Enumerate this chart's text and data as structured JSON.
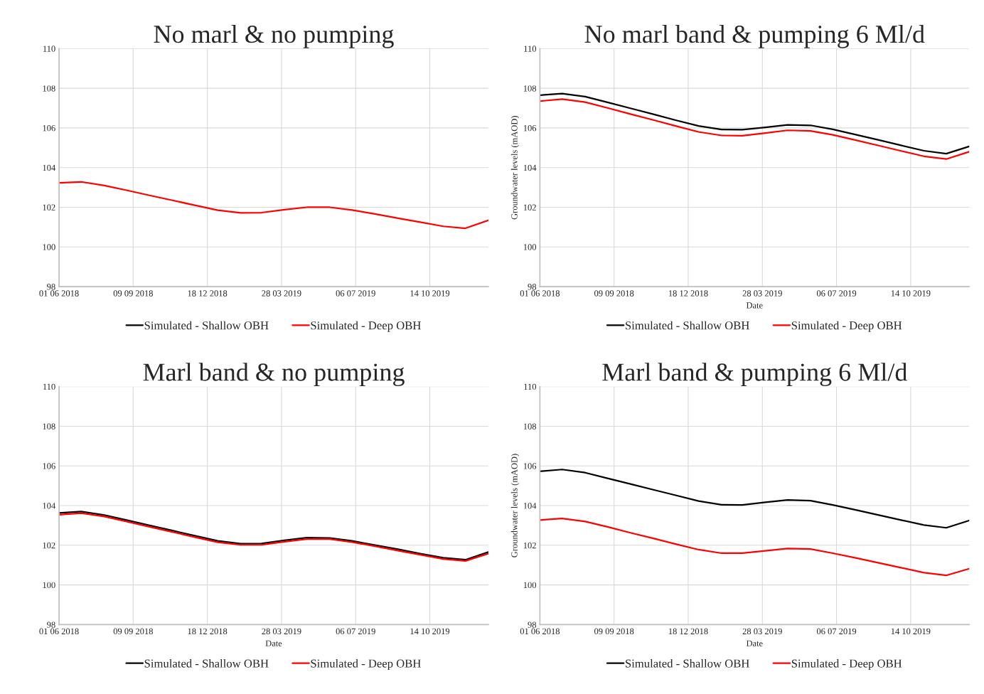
{
  "chart_data": [
    {
      "type": "line",
      "title": "No marl & no pumping",
      "x": [
        "2018-06-01",
        "2018-07-01",
        "2018-08-01",
        "2018-09-01",
        "2018-10-01",
        "2018-11-01",
        "2018-12-01",
        "2019-01-01",
        "2019-02-01",
        "2019-03-01",
        "2019-04-01",
        "2019-05-01",
        "2019-06-01",
        "2019-07-01",
        "2019-08-01",
        "2019-09-01",
        "2019-10-01",
        "2019-11-01",
        "2019-12-01",
        "2020-01-01"
      ],
      "series": [
        {
          "name": "Simulated - Shallow OBH",
          "color": "#000000",
          "values": [
            null,
            null,
            null,
            null,
            null,
            null,
            null,
            null,
            null,
            null,
            null,
            null,
            null,
            null,
            null,
            null,
            null,
            null,
            null,
            null
          ]
        },
        {
          "name": "Simulated - Deep OBH",
          "color": "#ff0000",
          "values": [
            103.23,
            103.28,
            103.1,
            102.85,
            102.6,
            102.35,
            102.1,
            101.85,
            101.72,
            101.73,
            101.88,
            102.0,
            102.0,
            101.86,
            101.66,
            101.45,
            101.25,
            101.04,
            100.94,
            101.34
          ]
        }
      ],
      "xlim": [
        "2018-06-01",
        "2020-01-01"
      ],
      "xticks": [
        {
          "value": "2018-06-01",
          "label": "01 06 2018"
        },
        {
          "value": "2018-09-09",
          "label": "09 09 2018"
        },
        {
          "value": "2018-12-18",
          "label": "18 12 2018"
        },
        {
          "value": "2019-03-28",
          "label": "28 03 2019"
        },
        {
          "value": "2019-07-06",
          "label": "06 07 2019"
        },
        {
          "value": "2019-10-14",
          "label": "14 10 2019"
        }
      ],
      "ylim": [
        98,
        110
      ],
      "yticks": [
        98,
        100,
        102,
        104,
        106,
        108,
        110
      ],
      "grid": true,
      "legend": "bottom"
    },
    {
      "type": "line",
      "title": "No marl band & pumping 6 Ml/d",
      "xlabel": "Date",
      "ylabel": "Groundwater levels (mAOD)",
      "x": [
        "2018-06-01",
        "2018-07-01",
        "2018-08-01",
        "2018-09-01",
        "2018-10-01",
        "2018-11-01",
        "2018-12-01",
        "2019-01-01",
        "2019-02-01",
        "2019-03-01",
        "2019-04-01",
        "2019-05-01",
        "2019-06-01",
        "2019-07-01",
        "2019-08-01",
        "2019-09-01",
        "2019-10-01",
        "2019-11-01",
        "2019-12-01",
        "2020-01-01"
      ],
      "series": [
        {
          "name": "Simulated - Shallow OBH",
          "color": "#000000",
          "values": [
            107.65,
            107.73,
            107.58,
            107.28,
            106.99,
            106.69,
            106.39,
            106.1,
            105.92,
            105.91,
            106.03,
            106.15,
            106.13,
            105.93,
            105.66,
            105.39,
            105.12,
            104.85,
            104.7,
            105.07
          ]
        },
        {
          "name": "Simulated - Deep OBH",
          "color": "#ff0000",
          "values": [
            107.35,
            107.45,
            107.3,
            107.0,
            106.7,
            106.4,
            106.1,
            105.8,
            105.62,
            105.61,
            105.74,
            105.88,
            105.85,
            105.65,
            105.38,
            105.11,
            104.84,
            104.57,
            104.43,
            104.8
          ]
        }
      ],
      "xlim": [
        "2018-06-01",
        "2020-01-01"
      ],
      "xticks": [
        {
          "value": "2018-06-01",
          "label": "01 06 2018"
        },
        {
          "value": "2018-09-09",
          "label": "09 09 2018"
        },
        {
          "value": "2018-12-18",
          "label": "18 12 2018"
        },
        {
          "value": "2019-03-28",
          "label": "28 03 2019"
        },
        {
          "value": "2019-07-06",
          "label": "06 07 2019"
        },
        {
          "value": "2019-10-14",
          "label": "14 10 2019"
        }
      ],
      "ylim": [
        98,
        110
      ],
      "yticks": [
        98,
        100,
        102,
        104,
        106,
        108,
        110
      ],
      "grid": true,
      "legend": "bottom"
    },
    {
      "type": "line",
      "title": "Marl band & no pumping",
      "xlabel": "Date",
      "x": [
        "2018-06-01",
        "2018-07-01",
        "2018-08-01",
        "2018-09-01",
        "2018-10-01",
        "2018-11-01",
        "2018-12-01",
        "2019-01-01",
        "2019-02-01",
        "2019-03-01",
        "2019-04-01",
        "2019-05-01",
        "2019-06-01",
        "2019-07-01",
        "2019-08-01",
        "2019-09-01",
        "2019-10-01",
        "2019-11-01",
        "2019-12-01",
        "2020-01-01"
      ],
      "series": [
        {
          "name": "Simulated - Shallow OBH",
          "color": "#000000",
          "values": [
            103.63,
            103.7,
            103.52,
            103.26,
            103.0,
            102.74,
            102.48,
            102.22,
            102.08,
            102.09,
            102.25,
            102.38,
            102.37,
            102.22,
            102.01,
            101.8,
            101.58,
            101.37,
            101.27,
            101.66
          ]
        },
        {
          "name": "Simulated - Deep OBH",
          "color": "#ff0000",
          "values": [
            103.54,
            103.62,
            103.45,
            103.19,
            102.93,
            102.67,
            102.41,
            102.15,
            102.02,
            102.02,
            102.18,
            102.31,
            102.31,
            102.16,
            101.95,
            101.73,
            101.52,
            101.31,
            101.21,
            101.58
          ]
        }
      ],
      "xlim": [
        "2018-06-01",
        "2020-01-01"
      ],
      "xticks": [
        {
          "value": "2018-06-01",
          "label": "01 06 2018"
        },
        {
          "value": "2018-09-09",
          "label": "09 09 2018"
        },
        {
          "value": "2018-12-18",
          "label": "18 12 2018"
        },
        {
          "value": "2019-03-28",
          "label": "28 03 2019"
        },
        {
          "value": "2019-07-06",
          "label": "06 07 2019"
        },
        {
          "value": "2019-10-14",
          "label": "14 10 2019"
        }
      ],
      "ylim": [
        98,
        110
      ],
      "yticks": [
        98,
        100,
        102,
        104,
        106,
        108,
        110
      ],
      "grid": true,
      "legend": "bottom"
    },
    {
      "type": "line",
      "title": "Marl band & pumping 6 Ml/d",
      "xlabel": "Date",
      "ylabel": "Groundwater levels (mAOD)",
      "x": [
        "2018-06-01",
        "2018-07-01",
        "2018-08-01",
        "2018-09-01",
        "2018-10-01",
        "2018-11-01",
        "2018-12-01",
        "2019-01-01",
        "2019-02-01",
        "2019-03-01",
        "2019-04-01",
        "2019-05-01",
        "2019-06-01",
        "2019-07-01",
        "2019-08-01",
        "2019-09-01",
        "2019-10-01",
        "2019-11-01",
        "2019-12-01",
        "2020-01-01"
      ],
      "series": [
        {
          "name": "Simulated - Shallow OBH",
          "color": "#000000",
          "values": [
            105.73,
            105.82,
            105.66,
            105.37,
            105.09,
            104.8,
            104.52,
            104.23,
            104.04,
            104.03,
            104.17,
            104.28,
            104.25,
            104.03,
            103.78,
            103.52,
            103.27,
            103.02,
            102.88,
            103.25
          ]
        },
        {
          "name": "Simulated - Deep OBH",
          "color": "#ff0000",
          "values": [
            103.27,
            103.35,
            103.2,
            102.92,
            102.63,
            102.35,
            102.06,
            101.78,
            101.6,
            101.6,
            101.72,
            101.84,
            101.81,
            101.6,
            101.36,
            101.11,
            100.87,
            100.62,
            100.48,
            100.82
          ]
        }
      ],
      "xlim": [
        "2018-06-01",
        "2020-01-01"
      ],
      "xticks": [
        {
          "value": "2018-06-01",
          "label": "01 06 2018"
        },
        {
          "value": "2018-09-09",
          "label": "09 09 2018"
        },
        {
          "value": "2018-12-18",
          "label": "18 12 2018"
        },
        {
          "value": "2019-03-28",
          "label": "28 03 2019"
        },
        {
          "value": "2019-07-06",
          "label": "06 07 2019"
        },
        {
          "value": "2019-10-14",
          "label": "14 10 2019"
        }
      ],
      "ylim": [
        98,
        110
      ],
      "yticks": [
        98,
        100,
        102,
        104,
        106,
        108,
        110
      ],
      "grid": true,
      "legend": "bottom"
    }
  ]
}
